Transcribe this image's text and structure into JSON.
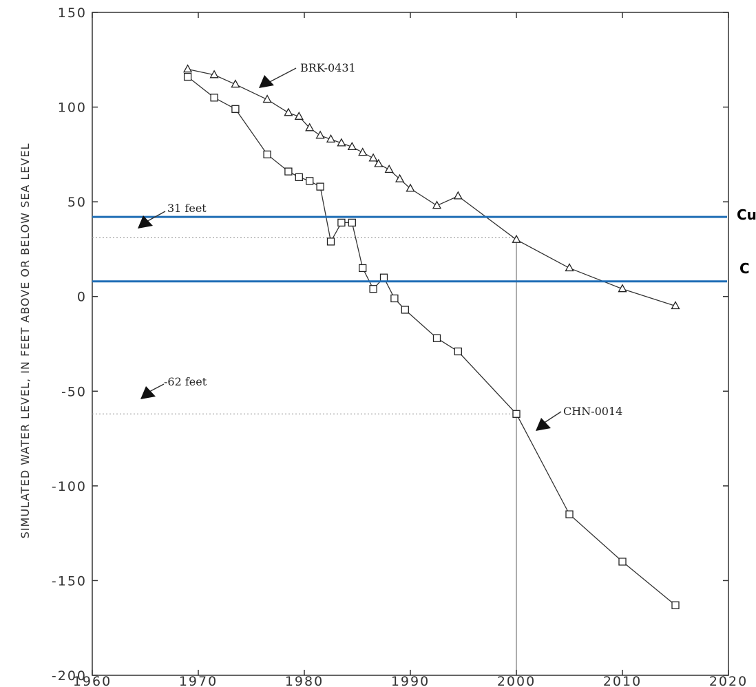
{
  "chart_data": {
    "type": "line",
    "title": "",
    "xlabel": "",
    "ylabel": "SIMULATED WATER LEVEL, IN FEET ABOVE OR BELOW SEA LEVEL",
    "xlim": [
      1960,
      2020
    ],
    "ylim": [
      -200,
      150
    ],
    "x_ticks": [
      1960,
      1970,
      1980,
      1990,
      2000,
      2010,
      2020
    ],
    "x_tick_labels": [
      "1960",
      "1970",
      "1980",
      "1990",
      "2000",
      "2010",
      "2020"
    ],
    "y_ticks": [
      150,
      100,
      50,
      0,
      -50,
      -100,
      -150,
      -200
    ],
    "y_tick_labels": [
      "150",
      "100",
      "50",
      "0",
      "-50",
      "-100",
      "-150",
      "-200"
    ],
    "grid": false,
    "series": [
      {
        "name": "BRK-0431",
        "marker": "triangle",
        "x": [
          1969,
          1971.5,
          1973.5,
          1976.5,
          1978.5,
          1979.5,
          1980.5,
          1981.5,
          1982.5,
          1983.5,
          1984.5,
          1985.5,
          1986.5,
          1987,
          1988,
          1989,
          1990,
          1992.5,
          1994.5,
          2000,
          2005,
          2010,
          2015
        ],
        "y": [
          120,
          117,
          112,
          104,
          97,
          95,
          89,
          85,
          83,
          81,
          79,
          76,
          73,
          70,
          67,
          62,
          57,
          48,
          53,
          30,
          15,
          4,
          -5
        ]
      },
      {
        "name": "CHN-0014",
        "marker": "square",
        "x": [
          1969,
          1971.5,
          1973.5,
          1976.5,
          1978.5,
          1979.5,
          1980.5,
          1981.5,
          1982.5,
          1983.5,
          1984.5,
          1985.5,
          1986.5,
          1987.5,
          1988.5,
          1989.5,
          1992.5,
          1994.5,
          2000,
          2005,
          2010,
          2015
        ],
        "y": [
          116,
          105,
          99,
          75,
          66,
          63,
          61,
          58,
          29,
          39,
          39,
          15,
          4,
          10,
          -1,
          -7,
          -22,
          -29,
          -62,
          -115,
          -140,
          -163
        ]
      }
    ],
    "reference_lines": [
      {
        "label": "31 feet",
        "y": 31
      },
      {
        "label": "-62 feet",
        "y": -62
      }
    ],
    "vertical_line": {
      "x": 2000
    },
    "blue_lines": [
      {
        "label": "Cu",
        "y": 42,
        "color": "#1f6db5"
      },
      {
        "label": "C",
        "y": 8,
        "color": "#1f6db5"
      }
    ],
    "annotations": [
      {
        "text": "BRK-0431"
      },
      {
        "text": "CHN-0014"
      }
    ]
  }
}
